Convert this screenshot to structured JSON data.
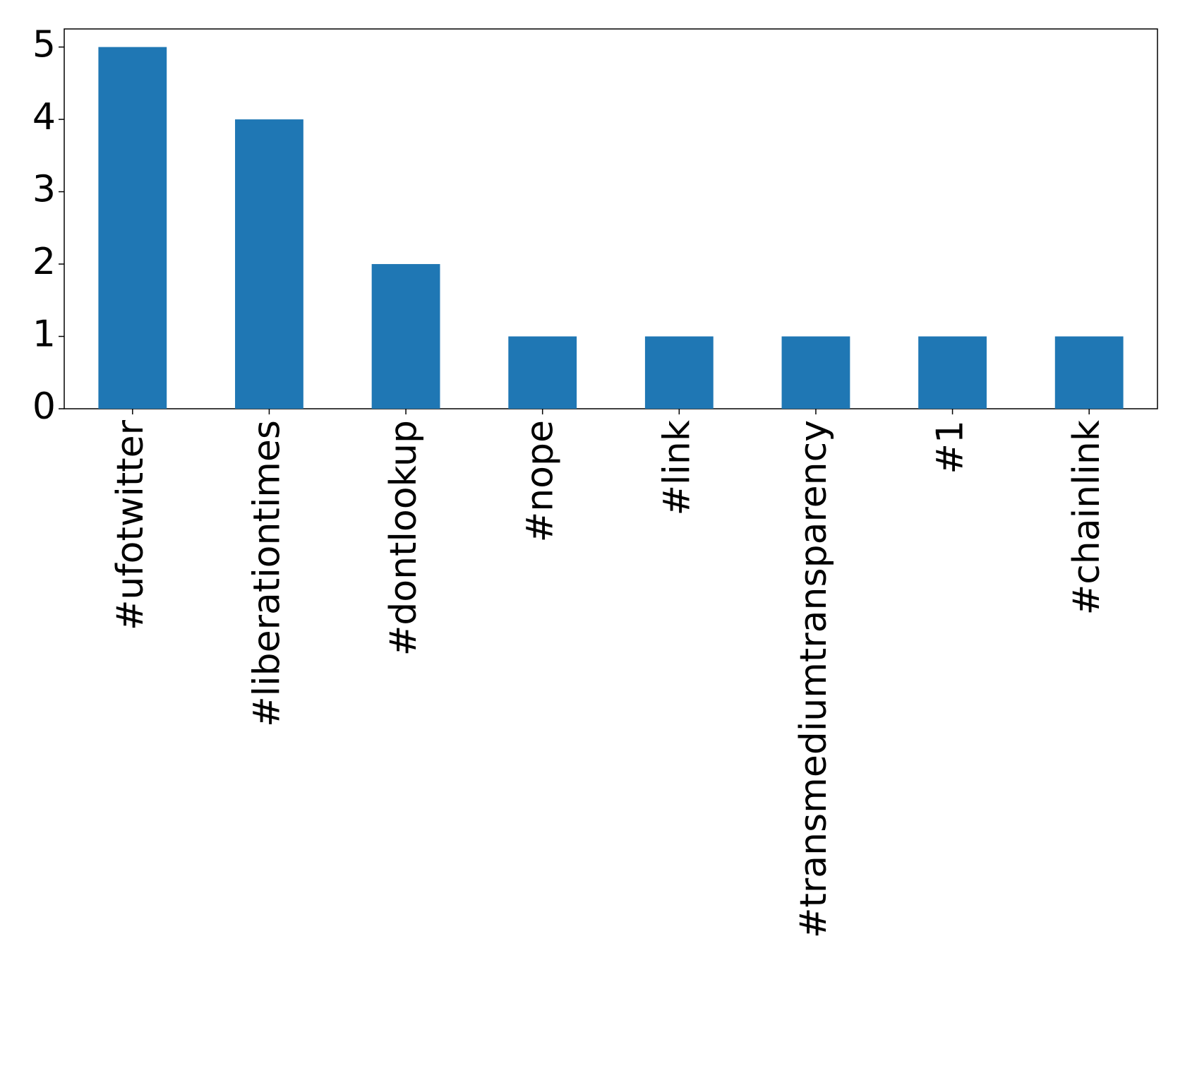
{
  "chart_data": {
    "type": "bar",
    "categories": [
      "#ufotwitter",
      "#liberationtimes",
      "#dontlookup",
      "#nope",
      "#link",
      "#transmediumtransparency",
      "#1",
      "#chainlink"
    ],
    "values": [
      5,
      4,
      2,
      1,
      1,
      1,
      1,
      1
    ],
    "color": "#1f77b4",
    "ylim": [
      0,
      5.25
    ],
    "yticks": [
      0,
      1,
      2,
      3,
      4,
      5
    ],
    "grid": false
  }
}
